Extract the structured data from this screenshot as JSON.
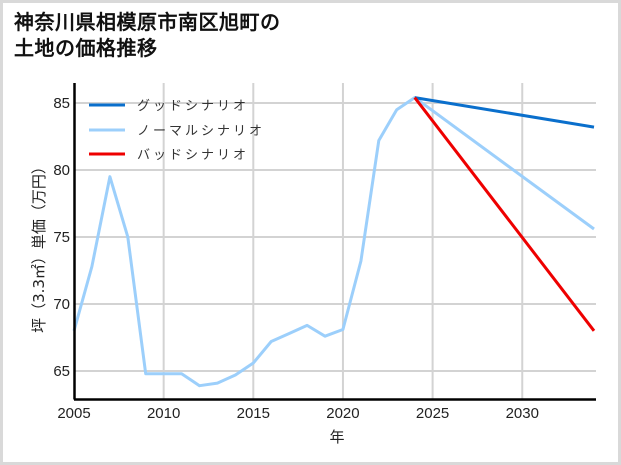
{
  "title_line1": "神奈川県相模原市南区旭町の",
  "title_line2": "土地の価格推移",
  "chart_data": {
    "type": "line",
    "title": "神奈川県相模原市南区旭町の土地の価格推移",
    "xlabel": "年",
    "ylabel": "坪（3.3㎡）単価（万円）",
    "xlim": [
      2005,
      2034
    ],
    "ylim": [
      63,
      86.5
    ],
    "xticks": [
      2005,
      2010,
      2015,
      2020,
      2025,
      2030
    ],
    "yticks": [
      65,
      70,
      75,
      80,
      85
    ],
    "grid": true,
    "legend_position": "upper left",
    "series": [
      {
        "name": "グッドシナリオ",
        "color": "#0a6fcc",
        "x": [
          2024,
          2034
        ],
        "values": [
          85.4,
          83.2
        ]
      },
      {
        "name": "ノーマルシナリオ",
        "color": "#9ccffb",
        "x": [
          2005,
          2006,
          2007,
          2008,
          2009,
          2010,
          2011,
          2012,
          2013,
          2014,
          2015,
          2016,
          2017,
          2018,
          2019,
          2020,
          2021,
          2022,
          2023,
          2024,
          2034
        ],
        "values": [
          68.0,
          72.8,
          79.5,
          75.0,
          64.8,
          64.8,
          64.8,
          63.9,
          64.1,
          64.7,
          65.6,
          67.2,
          67.8,
          68.4,
          67.6,
          68.1,
          73.2,
          82.2,
          84.5,
          85.4,
          75.6
        ]
      },
      {
        "name": "バッドシナリオ",
        "color": "#ee0000",
        "x": [
          2024,
          2034
        ],
        "values": [
          85.4,
          68.0
        ]
      }
    ]
  },
  "legend": {
    "good": "グッドシナリオ",
    "normal": "ノーマルシナリオ",
    "bad": "バッドシナリオ"
  },
  "axis": {
    "xlabel": "年",
    "ylabel": "坪（3.3㎡）単価（万円）",
    "xticks": [
      "2005",
      "2010",
      "2015",
      "2020",
      "2025",
      "2030"
    ],
    "yticks": [
      "65",
      "70",
      "75",
      "80",
      "85"
    ]
  }
}
